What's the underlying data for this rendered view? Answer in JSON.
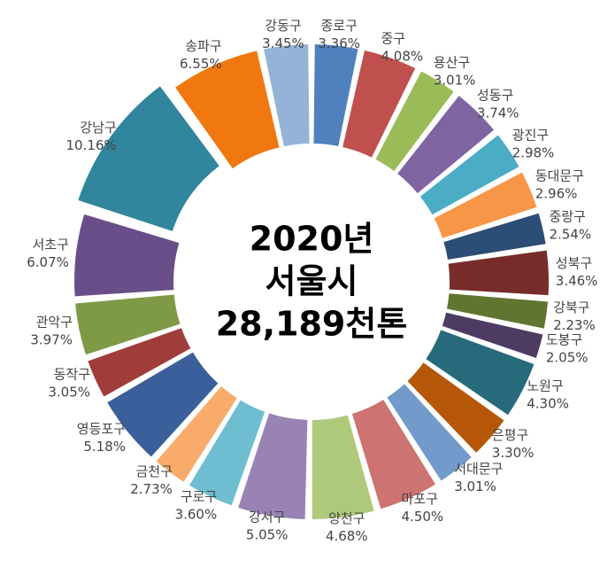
{
  "chart_data": {
    "type": "doughnut",
    "center_text": [
      "2020년",
      "서울시",
      "28,189천톤"
    ],
    "categories": [
      "종로구",
      "중구",
      "용산구",
      "성동구",
      "광진구",
      "동대문구",
      "중랑구",
      "성북구",
      "강북구",
      "도봉구",
      "노원구",
      "은평구",
      "서대문구",
      "마포구",
      "양천구",
      "강서구",
      "구로구",
      "금천구",
      "영등포구",
      "동작구",
      "관악구",
      "서초구",
      "강남구",
      "송파구",
      "강동구"
    ],
    "values": [
      3.36,
      4.08,
      3.01,
      3.74,
      2.98,
      2.96,
      2.54,
      3.46,
      2.23,
      2.05,
      4.3,
      3.3,
      3.01,
      4.5,
      4.68,
      5.05,
      3.6,
      2.73,
      5.18,
      3.05,
      3.97,
      6.07,
      10.16,
      6.55,
      3.45
    ],
    "value_labels": [
      "3.36%",
      "4.08%",
      "3.01%",
      "3.74%",
      "2.98%",
      "2.96%",
      "2.54%",
      "3.46%",
      "2.23%",
      "2.05%",
      "4.30%",
      "3.30%",
      "3.01%",
      "4.50%",
      "4.68%",
      "5.05%",
      "3.60%",
      "2.73%",
      "5.18%",
      "3.05%",
      "3.97%",
      "6.07%",
      "10.16%",
      "6.55%",
      "3.45%"
    ],
    "colors": [
      "#4f81bd",
      "#c0504d",
      "#9bbb59",
      "#8064a2",
      "#4bacc6",
      "#f79646",
      "#2c4d75",
      "#772c2a",
      "#5f7530",
      "#4d3b62",
      "#276a7c",
      "#b65708",
      "#729aca",
      "#cd7371",
      "#afc97a",
      "#9983b5",
      "#6fbdd1",
      "#f9ab6b",
      "#3a5f9a",
      "#a03c3a",
      "#7f9a47",
      "#6a4e8a",
      "#31859c",
      "#f0780f",
      "#95b3d7"
    ]
  }
}
